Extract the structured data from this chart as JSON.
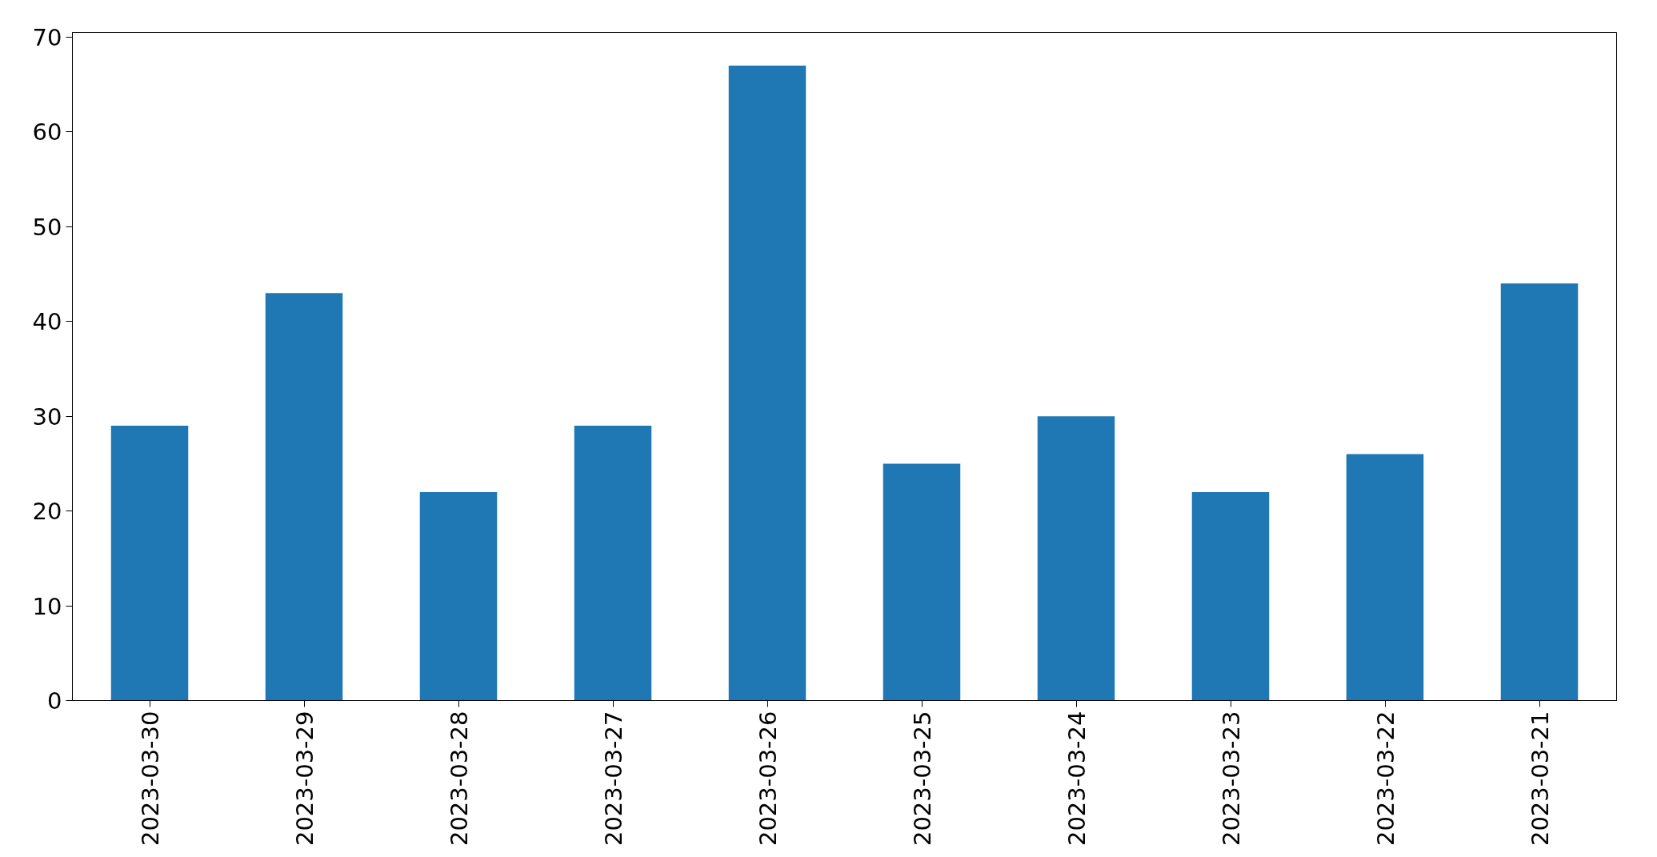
{
  "chart_data": {
    "type": "bar",
    "categories": [
      "2023-03-30",
      "2023-03-29",
      "2023-03-28",
      "2023-03-27",
      "2023-03-26",
      "2023-03-25",
      "2023-03-24",
      "2023-03-23",
      "2023-03-22",
      "2023-03-21"
    ],
    "values": [
      29,
      43,
      22,
      29,
      67,
      25,
      30,
      22,
      26,
      44
    ],
    "color": "#1f77b4",
    "ylim": [
      0,
      70.5
    ],
    "yticks": [
      0,
      10,
      20,
      30,
      40,
      50,
      60,
      70
    ],
    "grid": false
  }
}
